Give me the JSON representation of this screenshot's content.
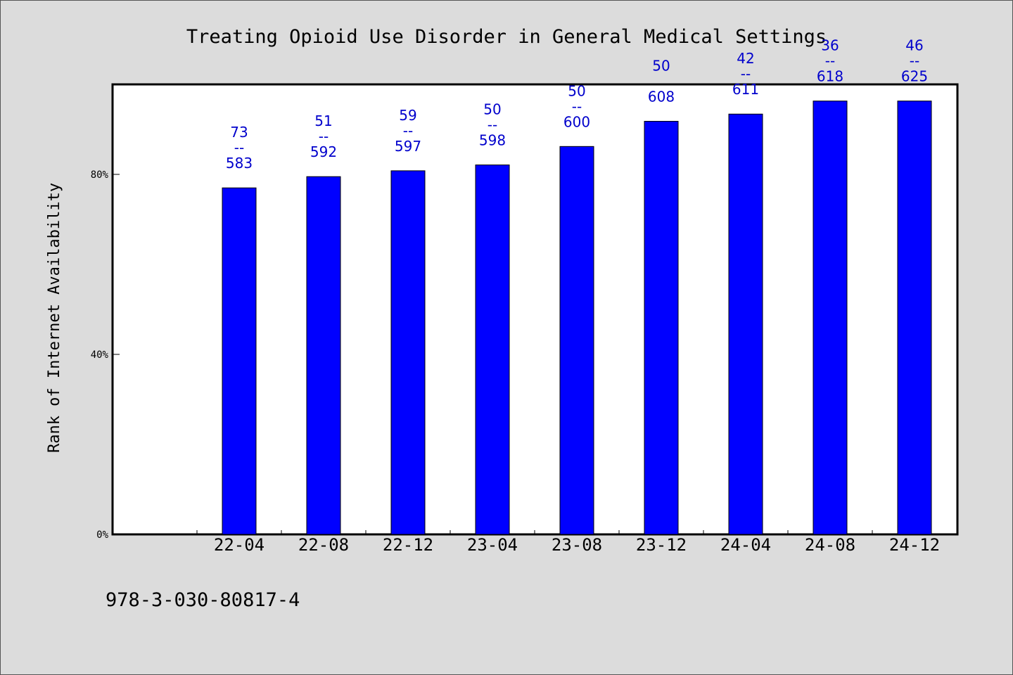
{
  "chart_data": {
    "type": "bar",
    "title": "Treating Opioid Use Disorder in General Medical Settings",
    "xlabel": "",
    "ylabel": "Rank of Internet Availability",
    "categories": [
      "22-04",
      "22-08",
      "22-12",
      "23-04",
      "23-08",
      "23-12",
      "24-04",
      "24-08",
      "24-12"
    ],
    "values": [
      77,
      79.5,
      80.8,
      82.1,
      86.2,
      91.8,
      93.4,
      96.3,
      96.3
    ],
    "labels_top": [
      "73",
      "51",
      "59",
      "50",
      "50",
      "50",
      "42",
      "36",
      "46"
    ],
    "labels_separator": [
      "--",
      "--",
      "--",
      "--",
      "--",
      "",
      "--",
      "--",
      "--"
    ],
    "labels_bottom": [
      "583",
      "592",
      "597",
      "598",
      "600",
      "608",
      "611",
      "618",
      "625"
    ],
    "y_ticks": [
      "0%",
      "40%",
      "80%"
    ],
    "y_tick_values": [
      0,
      40,
      80
    ],
    "ylim": [
      0,
      100
    ],
    "colors": {
      "bar": "#0000ff",
      "label": "#0000cc",
      "background": "#dcdcdc",
      "plot": "#ffffff"
    },
    "grid": false
  },
  "footer": {
    "text": "978-3-030-80817-4"
  }
}
